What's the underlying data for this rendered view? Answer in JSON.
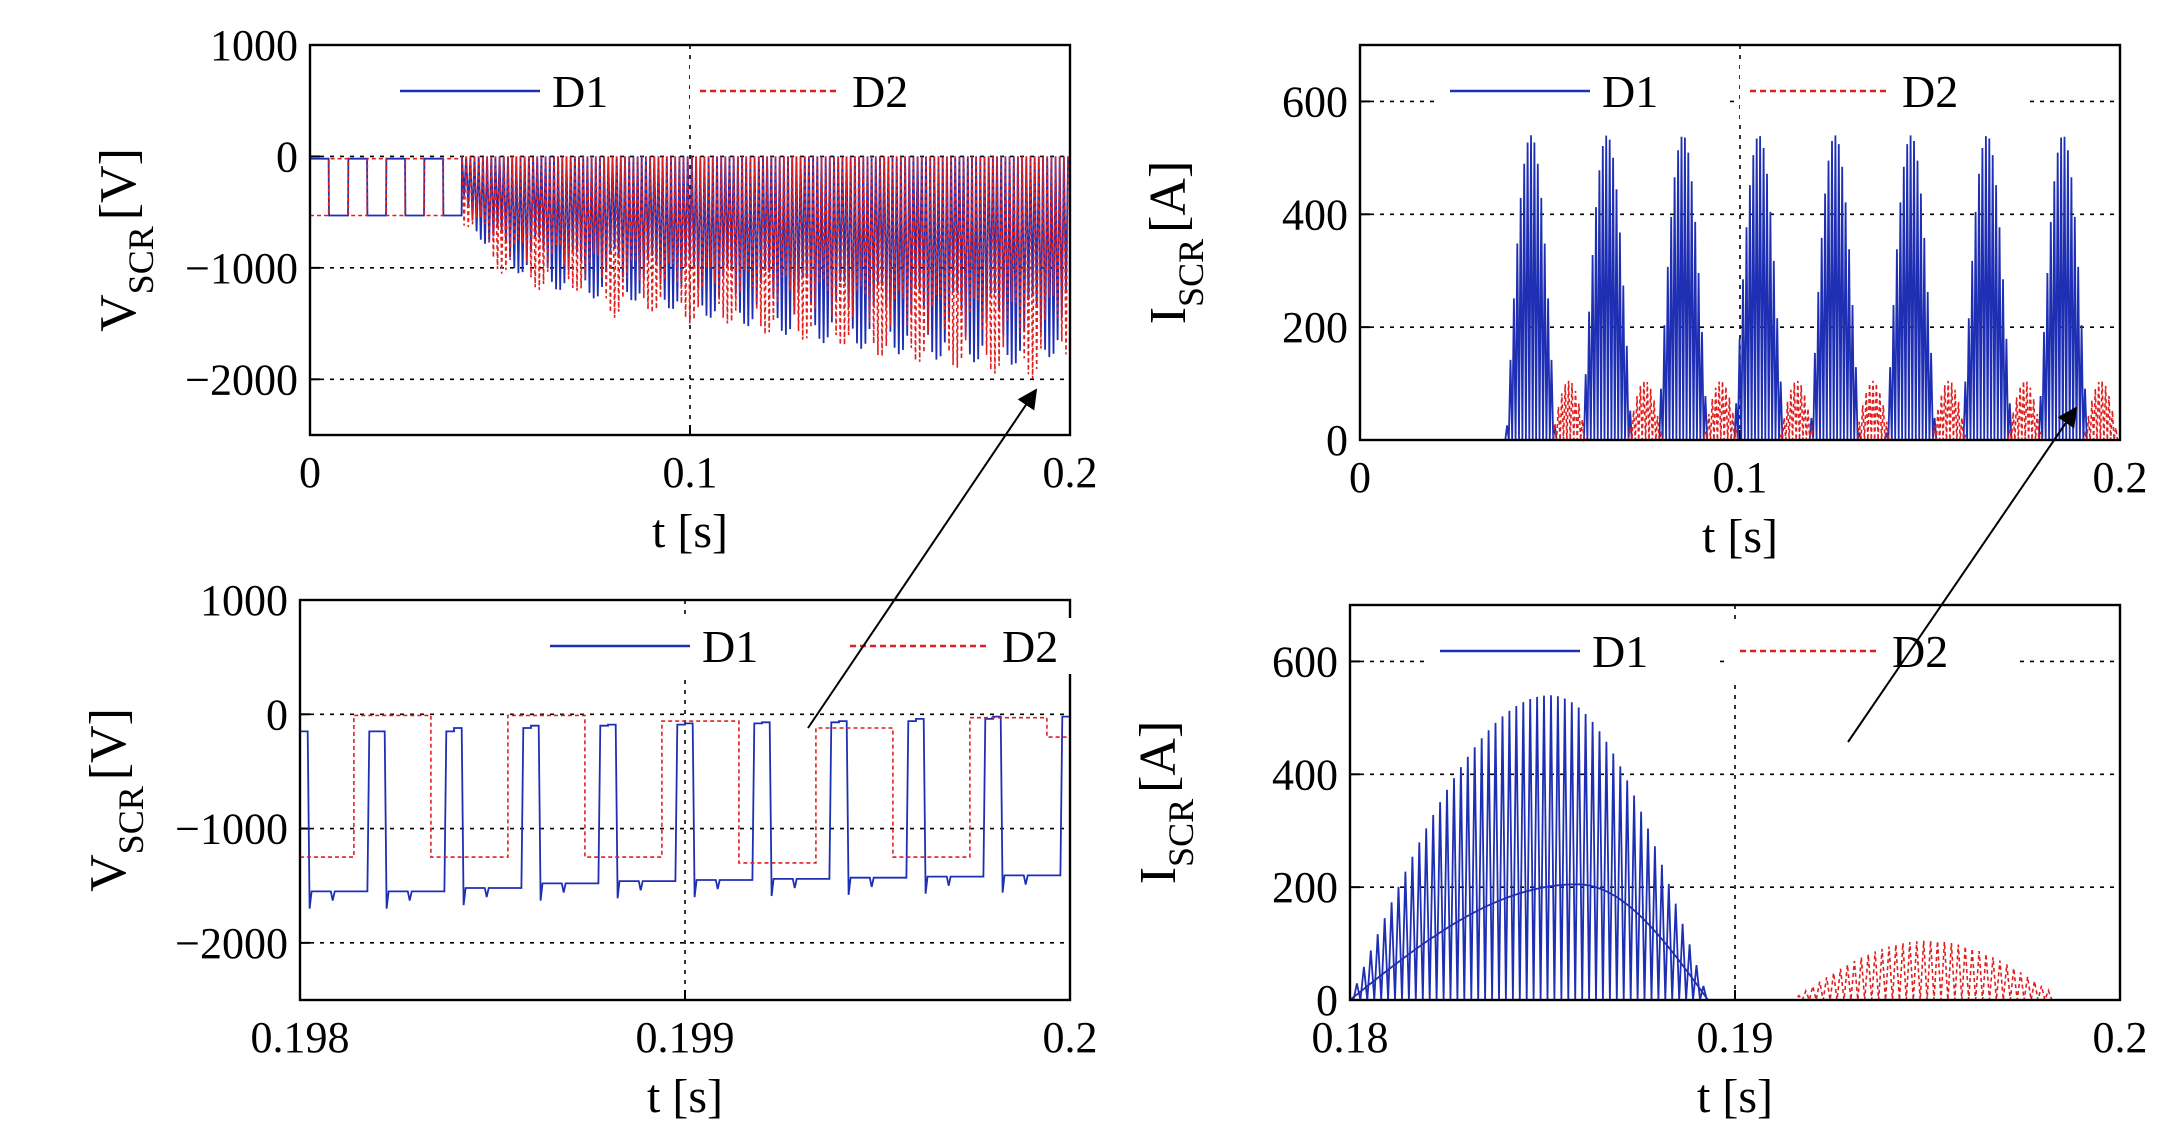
{
  "chart_data": [
    {
      "id": "p1",
      "type": "line",
      "title": "",
      "xlabel": "t [s]",
      "ylabel": {
        "main": "V",
        "sub": "SCR",
        "unit": "[V]"
      },
      "xlim": [
        0,
        0.2
      ],
      "ylim": [
        -2500,
        1000
      ],
      "xticks": [
        0,
        0.1,
        0.2
      ],
      "xtick_labels": [
        "0",
        "0.1",
        "0.2"
      ],
      "yticks": [
        -2000,
        -1000,
        0,
        1000
      ],
      "ytick_labels": [
        "−2000",
        "−1000",
        "0",
        "1000"
      ],
      "grid": true,
      "legend": {
        "position": "top",
        "entries": [
          "D1",
          "D2"
        ]
      },
      "series": [
        {
          "name": "D1",
          "color": "#1f2fb4",
          "style": "solid",
          "description": "0 to -530 V alternating blocks until 0.04 s, then fast switching between 0 V and a negative level whose envelope dips in 10 ms half-cycles growing from about -1100 V to -1900 V",
          "envelope_x": [
            0.04,
            0.05,
            0.06,
            0.07,
            0.08,
            0.09,
            0.1,
            0.11,
            0.12,
            0.13,
            0.14,
            0.15,
            0.16,
            0.17,
            0.18,
            0.19,
            0.2
          ],
          "envelope_min": [
            -500,
            -1000,
            -1100,
            -1300,
            -1250,
            -1350,
            -1400,
            -1500,
            -1550,
            -1650,
            -1700,
            -1750,
            -1800,
            -1850,
            -1850,
            -1900,
            -1700
          ]
        },
        {
          "name": "D2",
          "color": "#e02020",
          "style": "dashed",
          "description": "complementary to D1, offset by half a cycle",
          "envelope_x": [
            0.04,
            0.05,
            0.06,
            0.07,
            0.08,
            0.09,
            0.1,
            0.11,
            0.12,
            0.13,
            0.14,
            0.15,
            0.16,
            0.17,
            0.18,
            0.19,
            0.2
          ],
          "envelope_min": [
            -600,
            -1050,
            -1200,
            -1200,
            -1450,
            -1400,
            -1500,
            -1500,
            -1600,
            -1650,
            -1700,
            -1800,
            -1850,
            -1900,
            -1950,
            -2000,
            -1800
          ]
        }
      ]
    },
    {
      "id": "p2",
      "type": "line",
      "title": "",
      "xlabel": "t [s]",
      "ylabel": {
        "main": "I",
        "sub": "SCR",
        "unit": "[A]"
      },
      "xlim": [
        0,
        0.2
      ],
      "ylim": [
        0,
        700
      ],
      "xticks": [
        0,
        0.1,
        0.2
      ],
      "xtick_labels": [
        "0",
        "0.1",
        "0.2"
      ],
      "yticks": [
        0,
        200,
        400,
        600
      ],
      "ytick_labels": [
        "0",
        "200",
        "400",
        "600"
      ],
      "grid": true,
      "legend": {
        "position": "top",
        "entries": [
          "D1",
          "D2"
        ]
      },
      "series": [
        {
          "name": "D1",
          "color": "#1f2fb4",
          "style": "solid",
          "pulse_centers": [
            0.045,
            0.065,
            0.085,
            0.105,
            0.125,
            0.145,
            0.165,
            0.185
          ],
          "pulse_halfwidth": 0.0065,
          "peak": 540
        },
        {
          "name": "D2",
          "color": "#e02020",
          "style": "dashed",
          "pulse_centers": [
            0.055,
            0.075,
            0.095,
            0.115,
            0.135,
            0.155,
            0.175,
            0.195
          ],
          "pulse_halfwidth": 0.0045,
          "peak": 105
        }
      ]
    },
    {
      "id": "p3",
      "type": "line",
      "title": "",
      "xlabel": "t [s]",
      "ylabel": {
        "main": "V",
        "sub": "SCR",
        "unit": "[V]"
      },
      "xlim": [
        0.198,
        0.2
      ],
      "ylim": [
        -2500,
        1000
      ],
      "xticks": [
        0.198,
        0.199,
        0.2
      ],
      "xtick_labels": [
        "0.198",
        "0.199",
        "0.2"
      ],
      "yticks": [
        -2000,
        -1000,
        0,
        1000
      ],
      "ytick_labels": [
        "−2000",
        "−1000",
        "0",
        "1000"
      ],
      "grid": true,
      "legend": {
        "position": "top-right",
        "entries": [
          "D1",
          "D2"
        ]
      },
      "series": [
        {
          "name": "D1",
          "color": "#1f2fb4",
          "style": "solid",
          "transitions_x": [
            0.198,
            0.19802,
            0.1982,
            0.19822,
            0.1984,
            0.19842,
            0.1986,
            0.19862,
            0.1988,
            0.19882,
            0.199,
            0.19902,
            0.1992,
            0.19922,
            0.1994,
            0.19942,
            0.1996,
            0.19962,
            0.1998,
            0.19982,
            0.2
          ],
          "high_levels": [
            -150,
            -150,
            -120,
            -100,
            -90,
            -80,
            -70,
            -60,
            -40,
            -20
          ],
          "low_levels": [
            -1550,
            -1550,
            -1520,
            -1480,
            -1460,
            -1450,
            -1440,
            -1430,
            -1420,
            -1410
          ]
        },
        {
          "name": "D2",
          "color": "#e02020",
          "style": "dashed",
          "transitions_x": [
            0.198,
            0.19814,
            0.19834,
            0.19854,
            0.19874,
            0.19894,
            0.19914,
            0.19934,
            0.19954,
            0.19974,
            0.19994,
            0.2
          ],
          "levels": [
            -1250,
            -10,
            -1250,
            -10,
            -1250,
            -60,
            -1300,
            -120,
            -1250,
            -30,
            -200
          ]
        }
      ]
    },
    {
      "id": "p4",
      "type": "line",
      "title": "",
      "xlabel": "t [s]",
      "ylabel": {
        "main": "I",
        "sub": "SCR",
        "unit": "[A]"
      },
      "xlim": [
        0.18,
        0.2
      ],
      "ylim": [
        0,
        700
      ],
      "xticks": [
        0.18,
        0.19,
        0.2
      ],
      "xtick_labels": [
        "0.18",
        "0.19",
        "0.2"
      ],
      "yticks": [
        0,
        200,
        400,
        600
      ],
      "ytick_labels": [
        "0",
        "200",
        "400",
        "600"
      ],
      "grid": true,
      "legend": {
        "position": "top",
        "entries": [
          "D1",
          "D2"
        ]
      },
      "series": [
        {
          "name": "D1",
          "color": "#1f2fb4",
          "style": "solid",
          "pulse_start": 0.18,
          "pulse_end": 0.1893,
          "pulse_peak_time": 0.1852,
          "peak": 540,
          "mean_peak": 205
        },
        {
          "name": "D2",
          "color": "#e02020",
          "style": "dashed",
          "pulse_start": 0.1913,
          "pulse_end": 0.1983,
          "pulse_peak_time": 0.195,
          "peak": 105
        }
      ]
    }
  ]
}
